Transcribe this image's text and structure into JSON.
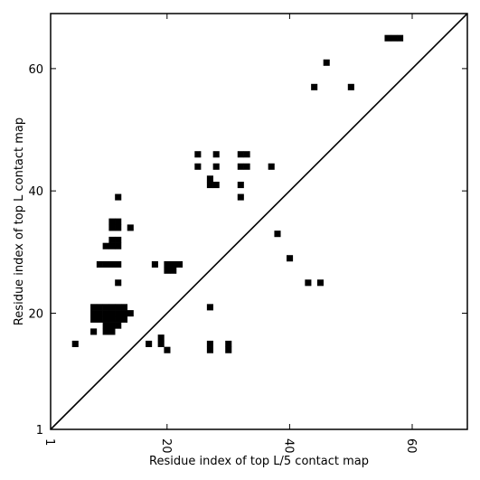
{
  "chart_data": {
    "type": "heatmap",
    "xlabel": "Residue index of top L/5 contact map",
    "ylabel": "Residue index of top L contact map",
    "xlim": [
      1,
      69
    ],
    "ylim": [
      1,
      69
    ],
    "xticks": [
      1,
      20,
      40,
      60
    ],
    "yticks": [
      1,
      20,
      40,
      60
    ],
    "diagonal": true,
    "grid": false,
    "legend": "none",
    "cell_color": "#000000",
    "contacts": [
      [
        5,
        15
      ],
      [
        8,
        17
      ],
      [
        8,
        19
      ],
      [
        9,
        19
      ],
      [
        10,
        19
      ],
      [
        11,
        19
      ],
      [
        12,
        19
      ],
      [
        13,
        19
      ],
      [
        8,
        20
      ],
      [
        9,
        20
      ],
      [
        10,
        20
      ],
      [
        11,
        20
      ],
      [
        12,
        20
      ],
      [
        13,
        20
      ],
      [
        14,
        20
      ],
      [
        8,
        21
      ],
      [
        9,
        21
      ],
      [
        10,
        21
      ],
      [
        11,
        21
      ],
      [
        12,
        21
      ],
      [
        13,
        21
      ],
      [
        10,
        18
      ],
      [
        11,
        18
      ],
      [
        12,
        18
      ],
      [
        10,
        17
      ],
      [
        11,
        17
      ],
      [
        12,
        25
      ],
      [
        9,
        28
      ],
      [
        10,
        28
      ],
      [
        11,
        28
      ],
      [
        12,
        28
      ],
      [
        10,
        31
      ],
      [
        11,
        31
      ],
      [
        12,
        31
      ],
      [
        11,
        32
      ],
      [
        12,
        32
      ],
      [
        11,
        34
      ],
      [
        12,
        34
      ],
      [
        11,
        35
      ],
      [
        12,
        35
      ],
      [
        14,
        34
      ],
      [
        12,
        39
      ],
      [
        17,
        15
      ],
      [
        19,
        15
      ],
      [
        19,
        16
      ],
      [
        20,
        14
      ],
      [
        18,
        28
      ],
      [
        20,
        27
      ],
      [
        21,
        27
      ],
      [
        20,
        28
      ],
      [
        21,
        28
      ],
      [
        22,
        28
      ],
      [
        25,
        44
      ],
      [
        25,
        46
      ],
      [
        27,
        14
      ],
      [
        27,
        15
      ],
      [
        27,
        21
      ],
      [
        27,
        41
      ],
      [
        28,
        41
      ],
      [
        27,
        42
      ],
      [
        28,
        44
      ],
      [
        28,
        46
      ],
      [
        30,
        14
      ],
      [
        30,
        15
      ],
      [
        32,
        39
      ],
      [
        32,
        41
      ],
      [
        32,
        44
      ],
      [
        33,
        44
      ],
      [
        32,
        46
      ],
      [
        33,
        46
      ],
      [
        37,
        44
      ],
      [
        38,
        33
      ],
      [
        40,
        29
      ],
      [
        43,
        25
      ],
      [
        45,
        25
      ],
      [
        44,
        57
      ],
      [
        46,
        61
      ],
      [
        50,
        57
      ],
      [
        56,
        65
      ],
      [
        57,
        65
      ],
      [
        58,
        65
      ]
    ]
  }
}
